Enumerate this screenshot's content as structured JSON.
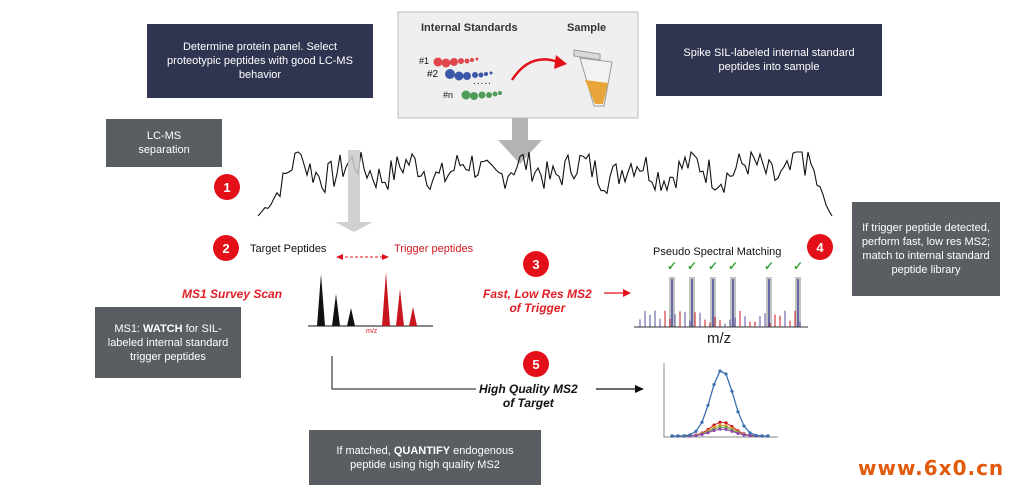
{
  "boxes": {
    "panel": "Determine protein panel. Select proteotypic peptides with good LC-MS behavior",
    "spike": "Spike SIL-labeled internal standard peptides into sample",
    "lcms": "LC-MS separation",
    "trigger_info": "If trigger peptide detected, perform fast, low res MS2; match to internal standard peptide library",
    "quantify_pre": "If matched, ",
    "quantify_bold": "QUANTIFY",
    "quantify_post": " endogenous peptide  using high quality MS2",
    "ms1_pre": "MS1: ",
    "ms1_bold": "WATCH",
    "ms1_post": " for SIL-labeled internal standard trigger peptides"
  },
  "inset": {
    "internal_standards": "Internal Standards",
    "sample": "Sample",
    "tag1": "#1",
    "tag2": "#2",
    "tagn": "#n",
    "dots": "....."
  },
  "steps": [
    "1",
    "2",
    "3",
    "4",
    "5"
  ],
  "labels": {
    "target_peptides": "Target Peptides",
    "trigger_peptides": "Trigger peptides",
    "ms1_survey": "MS1 Survey Scan",
    "mz_small": "m/z",
    "fast_ms2_line1": "Fast, Low Res MS2",
    "fast_ms2_line2": "of Trigger",
    "pseudo": "Pseudo Spectral Matching",
    "mz_big": "m/z",
    "hq_line1": "High Quality MS2",
    "hq_line2": "of Target"
  },
  "colors": {
    "red": "#e3101a",
    "dark_box": "#2f3550",
    "grey_box": "#5a5d62",
    "check": "#3aa33a"
  },
  "watermark": "www.6x0.cn"
}
